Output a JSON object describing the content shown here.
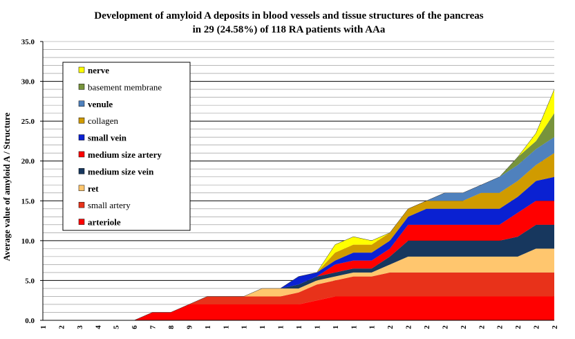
{
  "chart_data": {
    "type": "area",
    "stacked": true,
    "title_line1": "Development of amyloid A deposits in blood vessels and tissue structures of the pancreas",
    "title_line2": "in 29  (24.58%) of 118 RA patients with AAa",
    "ylabel": "Average value of amyloid A / Structure",
    "ylim": [
      0,
      35
    ],
    "ytick_labels": [
      "0.0",
      "5.0",
      "10.0",
      "15.0",
      "20.0",
      "25.0",
      "30.0",
      "35.0"
    ],
    "x_tick_labels": [
      "1",
      "2",
      "3",
      "4",
      "5",
      "6",
      "7",
      "8",
      "9",
      "1",
      "1",
      "1",
      "1",
      "1",
      "1",
      "1",
      "1",
      "1",
      "1",
      "2",
      "2",
      "2",
      "2",
      "2",
      "2",
      "2",
      "2",
      "2",
      "2"
    ],
    "grid": true,
    "legend_position": "top-left",
    "series": [
      {
        "name": "arteriole",
        "bold": true,
        "color": "#ff0000",
        "values": [
          0,
          0,
          0,
          0,
          0,
          0,
          1,
          1,
          2,
          2,
          2,
          2,
          2,
          2,
          2,
          2.5,
          3,
          3,
          3,
          3,
          3,
          3,
          3,
          3,
          3,
          3,
          3,
          3,
          3
        ]
      },
      {
        "name": "small artery",
        "bold": false,
        "color": "#e8321a",
        "values": [
          0,
          0,
          0,
          0,
          0,
          0,
          0,
          0,
          0,
          1,
          1,
          1,
          1,
          1,
          1.5,
          2,
          2,
          2.5,
          2.5,
          3,
          3,
          3,
          3,
          3,
          3,
          3,
          3,
          3,
          3
        ]
      },
      {
        "name": "ret",
        "bold": true,
        "color": "#ffc66e",
        "values": [
          0,
          0,
          0,
          0,
          0,
          0,
          0,
          0,
          0,
          0,
          0,
          0,
          1,
          1,
          0.5,
          0.5,
          0.5,
          0.5,
          0.5,
          1,
          2,
          2,
          2,
          2,
          2,
          2,
          2,
          3,
          3
        ]
      },
      {
        "name": "medium size vein",
        "bold": true,
        "color": "#17375e",
        "values": [
          0,
          0,
          0,
          0,
          0,
          0,
          0,
          0,
          0,
          0,
          0,
          0,
          0,
          0,
          0.5,
          0.5,
          0.5,
          0.5,
          0.5,
          1,
          2,
          2,
          2,
          2,
          2,
          2,
          2.5,
          3,
          3
        ]
      },
      {
        "name": "medium size artery",
        "bold": true,
        "color": "#ff0000",
        "values": [
          0,
          0,
          0,
          0,
          0,
          0,
          0,
          0,
          0,
          0,
          0,
          0,
          0,
          0,
          0,
          0,
          1,
          1,
          1,
          1,
          2,
          2,
          2,
          2,
          2,
          2,
          3,
          3,
          3
        ]
      },
      {
        "name": "small vein",
        "bold": true,
        "color": "#0a21d2",
        "values": [
          0,
          0,
          0,
          0,
          0,
          0,
          0,
          0,
          0,
          0,
          0,
          0,
          0,
          0,
          1,
          0.5,
          0.5,
          1,
          1,
          1,
          1,
          2,
          2,
          2,
          2,
          2,
          2,
          2.5,
          3
        ]
      },
      {
        "name": "collagen",
        "bold": false,
        "color": "#d09b00",
        "values": [
          0,
          0,
          0,
          0,
          0,
          0,
          0,
          0,
          0,
          0,
          0,
          0,
          0,
          0,
          0,
          0,
          1,
          1,
          1,
          1,
          1,
          1,
          1,
          1,
          2,
          2,
          2,
          2,
          3
        ]
      },
      {
        "name": "venule",
        "bold": true,
        "color": "#4f81bd",
        "values": [
          0,
          0,
          0,
          0,
          0,
          0,
          0,
          0,
          0,
          0,
          0,
          0,
          0,
          0,
          0,
          0,
          0,
          0,
          0,
          0,
          0,
          0,
          1,
          1,
          1,
          2,
          2,
          2,
          2
        ]
      },
      {
        "name": "basement membrane",
        "bold": false,
        "color": "#77933c",
        "values": [
          0,
          0,
          0,
          0,
          0,
          0,
          0,
          0,
          0,
          0,
          0,
          0,
          0,
          0,
          0,
          0,
          0,
          0,
          0,
          0,
          0,
          0,
          0,
          0,
          0,
          0,
          1,
          1,
          3
        ]
      },
      {
        "name": "nerve",
        "bold": true,
        "color": "#ffff00",
        "values": [
          0,
          0,
          0,
          0,
          0,
          0,
          0,
          0,
          0,
          0,
          0,
          0,
          0,
          0,
          0,
          0,
          1,
          1,
          0.5,
          0,
          0,
          0,
          0,
          0,
          0,
          0,
          0,
          1,
          3
        ]
      }
    ]
  }
}
